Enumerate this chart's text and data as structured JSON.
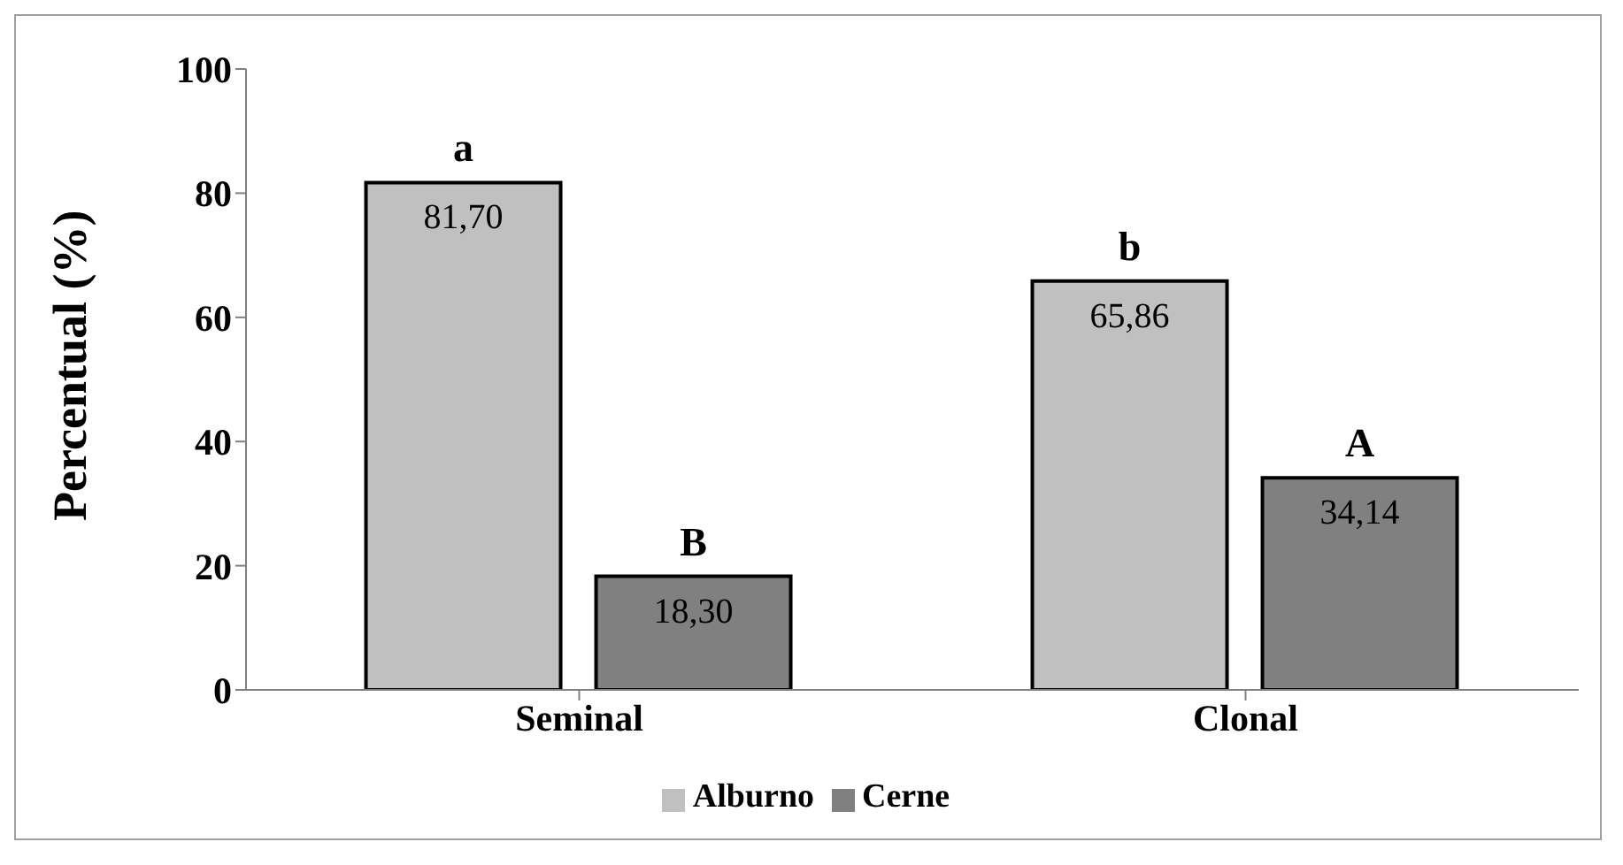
{
  "chart_data": {
    "type": "bar",
    "ylabel": "Percentual (%)",
    "categories": [
      "Seminal",
      "Clonal"
    ],
    "series": [
      {
        "name": "Alburno",
        "color": "#c0c0c0",
        "values": [
          81.7,
          65.86
        ],
        "value_labels": [
          "81,70",
          "65,86"
        ]
      },
      {
        "name": "Cerne",
        "color": "#808080",
        "values": [
          18.3,
          34.14
        ],
        "value_labels": [
          "18,30",
          "34,14"
        ]
      }
    ],
    "ylim": [
      0,
      100
    ],
    "yticks": [
      0,
      20,
      40,
      60,
      80,
      100
    ],
    "grid": false,
    "legend": "bottom",
    "annotations": [
      "a",
      "B",
      "b",
      "A"
    ]
  }
}
